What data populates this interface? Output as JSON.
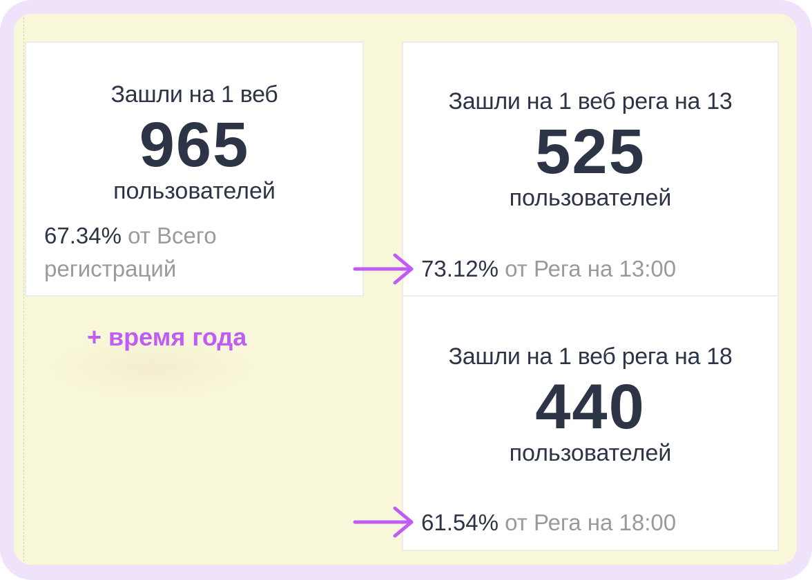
{
  "cards": [
    {
      "title": "Зашли на 1 веб",
      "value": "965",
      "unit": "пользователей",
      "percent": "67.34%",
      "caption": "от Всего регистраций"
    },
    {
      "title": "Зашли на 1 веб рега на 13",
      "value": "525",
      "unit": "пользователей",
      "percent": "73.12%",
      "caption": "от Рега на 13:00"
    },
    {
      "title": "Зашли на 1 веб рега на 18",
      "value": "440",
      "unit": "пользователей",
      "percent": "61.54%",
      "caption": "от Рега на 18:00"
    }
  ],
  "note": "+ время года",
  "colors": {
    "frame": "#efe2fb",
    "canvas": "#f9f7d9",
    "accent": "#c05cf2",
    "text": "#2c3446",
    "muted": "#9a9a9a"
  },
  "icons": [
    "arrow-right-icon",
    "arrow-right-icon"
  ]
}
